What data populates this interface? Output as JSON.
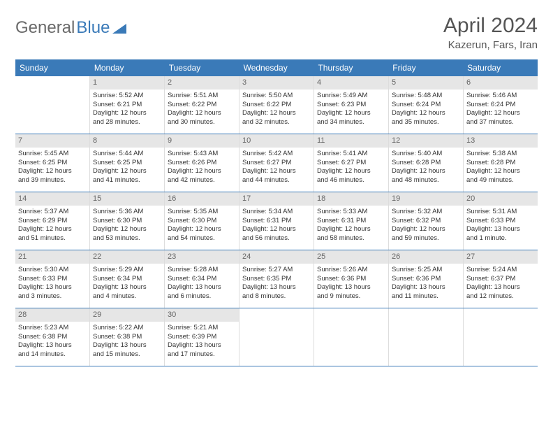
{
  "logo": {
    "text1": "General",
    "text2": "Blue"
  },
  "title": "April 2024",
  "location": "Kazerun, Fars, Iran",
  "colors": {
    "header_bg": "#3a7ab8",
    "daynum_bg": "#e6e6e6",
    "text": "#333333",
    "border": "#3a7ab8"
  },
  "day_labels": [
    "Sunday",
    "Monday",
    "Tuesday",
    "Wednesday",
    "Thursday",
    "Friday",
    "Saturday"
  ],
  "weeks": [
    [
      {
        "n": "",
        "sr": "",
        "ss": "",
        "d1": "",
        "d2": ""
      },
      {
        "n": "1",
        "sr": "Sunrise: 5:52 AM",
        "ss": "Sunset: 6:21 PM",
        "d1": "Daylight: 12 hours",
        "d2": "and 28 minutes."
      },
      {
        "n": "2",
        "sr": "Sunrise: 5:51 AM",
        "ss": "Sunset: 6:22 PM",
        "d1": "Daylight: 12 hours",
        "d2": "and 30 minutes."
      },
      {
        "n": "3",
        "sr": "Sunrise: 5:50 AM",
        "ss": "Sunset: 6:22 PM",
        "d1": "Daylight: 12 hours",
        "d2": "and 32 minutes."
      },
      {
        "n": "4",
        "sr": "Sunrise: 5:49 AM",
        "ss": "Sunset: 6:23 PM",
        "d1": "Daylight: 12 hours",
        "d2": "and 34 minutes."
      },
      {
        "n": "5",
        "sr": "Sunrise: 5:48 AM",
        "ss": "Sunset: 6:24 PM",
        "d1": "Daylight: 12 hours",
        "d2": "and 35 minutes."
      },
      {
        "n": "6",
        "sr": "Sunrise: 5:46 AM",
        "ss": "Sunset: 6:24 PM",
        "d1": "Daylight: 12 hours",
        "d2": "and 37 minutes."
      }
    ],
    [
      {
        "n": "7",
        "sr": "Sunrise: 5:45 AM",
        "ss": "Sunset: 6:25 PM",
        "d1": "Daylight: 12 hours",
        "d2": "and 39 minutes."
      },
      {
        "n": "8",
        "sr": "Sunrise: 5:44 AM",
        "ss": "Sunset: 6:25 PM",
        "d1": "Daylight: 12 hours",
        "d2": "and 41 minutes."
      },
      {
        "n": "9",
        "sr": "Sunrise: 5:43 AM",
        "ss": "Sunset: 6:26 PM",
        "d1": "Daylight: 12 hours",
        "d2": "and 42 minutes."
      },
      {
        "n": "10",
        "sr": "Sunrise: 5:42 AM",
        "ss": "Sunset: 6:27 PM",
        "d1": "Daylight: 12 hours",
        "d2": "and 44 minutes."
      },
      {
        "n": "11",
        "sr": "Sunrise: 5:41 AM",
        "ss": "Sunset: 6:27 PM",
        "d1": "Daylight: 12 hours",
        "d2": "and 46 minutes."
      },
      {
        "n": "12",
        "sr": "Sunrise: 5:40 AM",
        "ss": "Sunset: 6:28 PM",
        "d1": "Daylight: 12 hours",
        "d2": "and 48 minutes."
      },
      {
        "n": "13",
        "sr": "Sunrise: 5:38 AM",
        "ss": "Sunset: 6:28 PM",
        "d1": "Daylight: 12 hours",
        "d2": "and 49 minutes."
      }
    ],
    [
      {
        "n": "14",
        "sr": "Sunrise: 5:37 AM",
        "ss": "Sunset: 6:29 PM",
        "d1": "Daylight: 12 hours",
        "d2": "and 51 minutes."
      },
      {
        "n": "15",
        "sr": "Sunrise: 5:36 AM",
        "ss": "Sunset: 6:30 PM",
        "d1": "Daylight: 12 hours",
        "d2": "and 53 minutes."
      },
      {
        "n": "16",
        "sr": "Sunrise: 5:35 AM",
        "ss": "Sunset: 6:30 PM",
        "d1": "Daylight: 12 hours",
        "d2": "and 54 minutes."
      },
      {
        "n": "17",
        "sr": "Sunrise: 5:34 AM",
        "ss": "Sunset: 6:31 PM",
        "d1": "Daylight: 12 hours",
        "d2": "and 56 minutes."
      },
      {
        "n": "18",
        "sr": "Sunrise: 5:33 AM",
        "ss": "Sunset: 6:31 PM",
        "d1": "Daylight: 12 hours",
        "d2": "and 58 minutes."
      },
      {
        "n": "19",
        "sr": "Sunrise: 5:32 AM",
        "ss": "Sunset: 6:32 PM",
        "d1": "Daylight: 12 hours",
        "d2": "and 59 minutes."
      },
      {
        "n": "20",
        "sr": "Sunrise: 5:31 AM",
        "ss": "Sunset: 6:33 PM",
        "d1": "Daylight: 13 hours",
        "d2": "and 1 minute."
      }
    ],
    [
      {
        "n": "21",
        "sr": "Sunrise: 5:30 AM",
        "ss": "Sunset: 6:33 PM",
        "d1": "Daylight: 13 hours",
        "d2": "and 3 minutes."
      },
      {
        "n": "22",
        "sr": "Sunrise: 5:29 AM",
        "ss": "Sunset: 6:34 PM",
        "d1": "Daylight: 13 hours",
        "d2": "and 4 minutes."
      },
      {
        "n": "23",
        "sr": "Sunrise: 5:28 AM",
        "ss": "Sunset: 6:34 PM",
        "d1": "Daylight: 13 hours",
        "d2": "and 6 minutes."
      },
      {
        "n": "24",
        "sr": "Sunrise: 5:27 AM",
        "ss": "Sunset: 6:35 PM",
        "d1": "Daylight: 13 hours",
        "d2": "and 8 minutes."
      },
      {
        "n": "25",
        "sr": "Sunrise: 5:26 AM",
        "ss": "Sunset: 6:36 PM",
        "d1": "Daylight: 13 hours",
        "d2": "and 9 minutes."
      },
      {
        "n": "26",
        "sr": "Sunrise: 5:25 AM",
        "ss": "Sunset: 6:36 PM",
        "d1": "Daylight: 13 hours",
        "d2": "and 11 minutes."
      },
      {
        "n": "27",
        "sr": "Sunrise: 5:24 AM",
        "ss": "Sunset: 6:37 PM",
        "d1": "Daylight: 13 hours",
        "d2": "and 12 minutes."
      }
    ],
    [
      {
        "n": "28",
        "sr": "Sunrise: 5:23 AM",
        "ss": "Sunset: 6:38 PM",
        "d1": "Daylight: 13 hours",
        "d2": "and 14 minutes."
      },
      {
        "n": "29",
        "sr": "Sunrise: 5:22 AM",
        "ss": "Sunset: 6:38 PM",
        "d1": "Daylight: 13 hours",
        "d2": "and 15 minutes."
      },
      {
        "n": "30",
        "sr": "Sunrise: 5:21 AM",
        "ss": "Sunset: 6:39 PM",
        "d1": "Daylight: 13 hours",
        "d2": "and 17 minutes."
      },
      {
        "n": "",
        "sr": "",
        "ss": "",
        "d1": "",
        "d2": ""
      },
      {
        "n": "",
        "sr": "",
        "ss": "",
        "d1": "",
        "d2": ""
      },
      {
        "n": "",
        "sr": "",
        "ss": "",
        "d1": "",
        "d2": ""
      },
      {
        "n": "",
        "sr": "",
        "ss": "",
        "d1": "",
        "d2": ""
      }
    ]
  ]
}
